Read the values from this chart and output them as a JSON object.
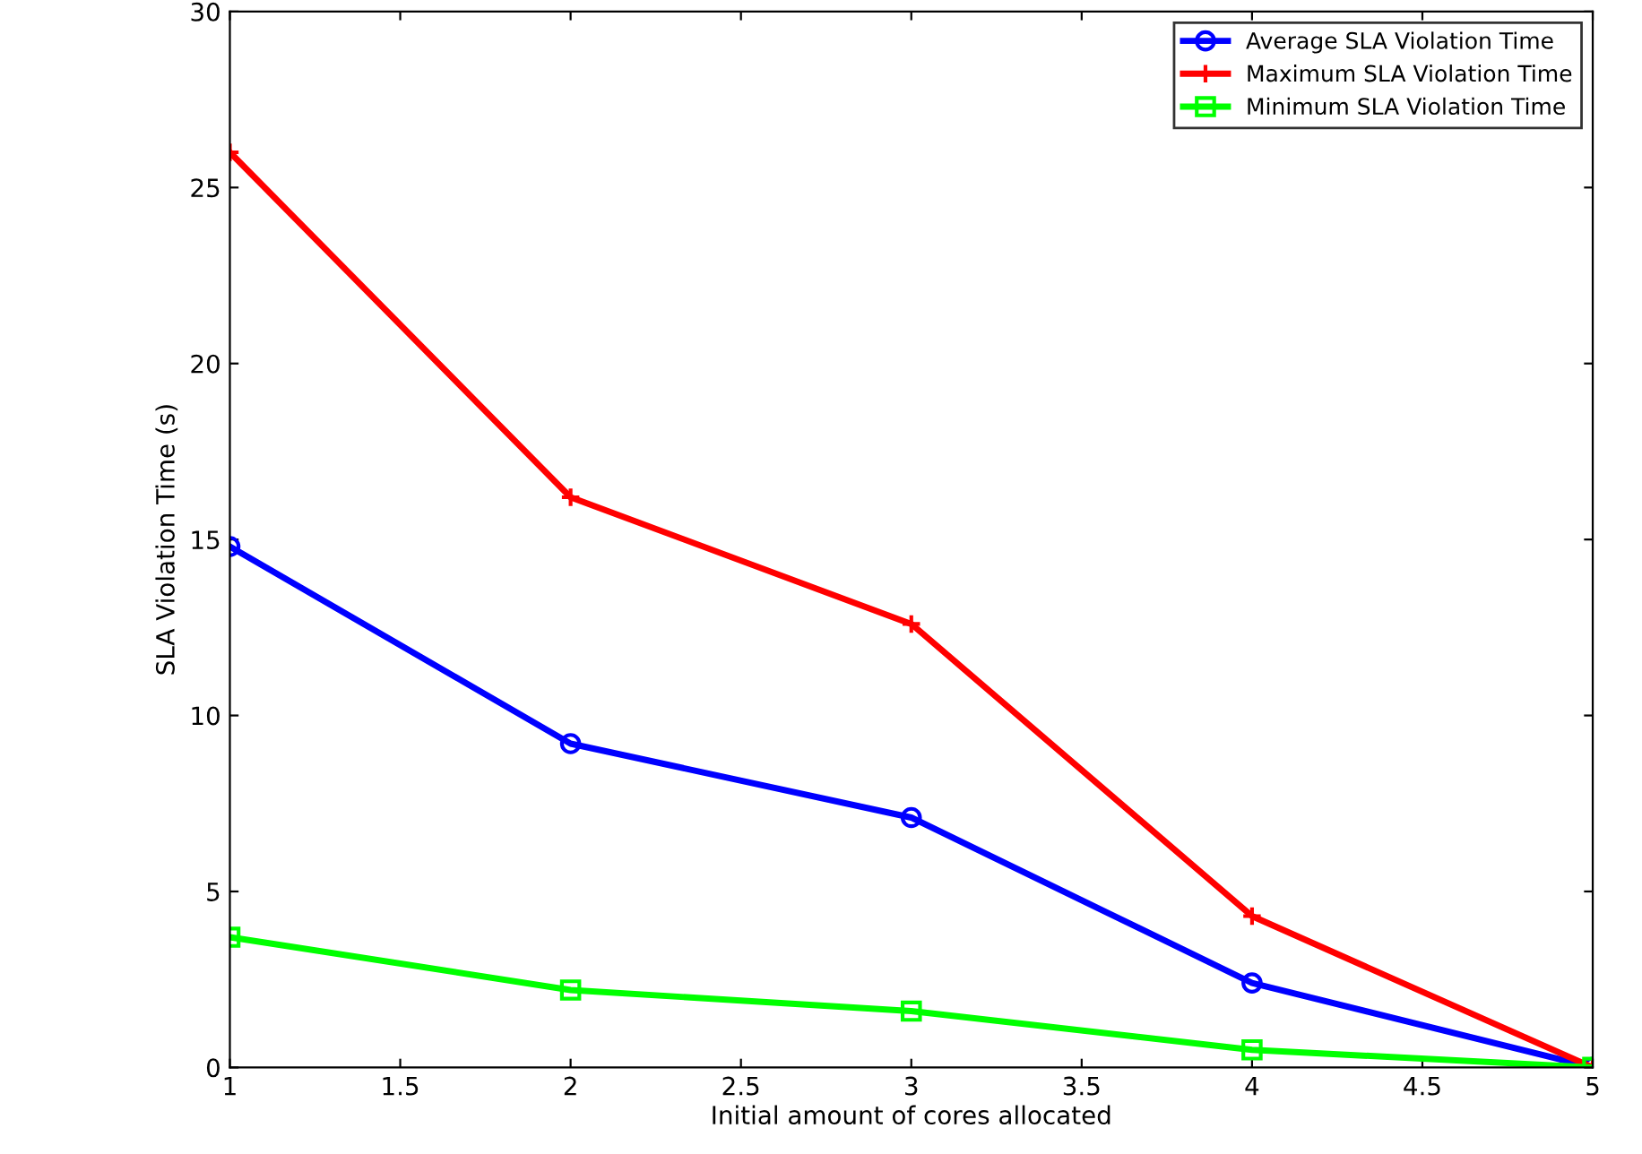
{
  "chart_data": {
    "type": "line",
    "xlabel": "Initial amount of cores allocated",
    "ylabel": "SLA Violation Time (s)",
    "x": [
      1,
      2,
      3,
      4,
      5
    ],
    "series": [
      {
        "name": "Average SLA Violation Time",
        "color": "#0000ff",
        "marker": "circle",
        "values": [
          14.8,
          9.2,
          7.1,
          2.4,
          0
        ]
      },
      {
        "name": "Maximum SLA Violation Time",
        "color": "#ff0000",
        "marker": "cross",
        "values": [
          26.0,
          16.2,
          12.6,
          4.3,
          0
        ]
      },
      {
        "name": "Minimum SLA Violation Time",
        "color": "#00ff00",
        "marker": "square",
        "values": [
          3.7,
          2.2,
          1.6,
          0.5,
          0
        ]
      }
    ],
    "xlim": [
      1,
      5
    ],
    "ylim": [
      0,
      30
    ],
    "xticks": [
      1,
      1.5,
      2,
      2.5,
      3,
      3.5,
      4,
      4.5,
      5
    ],
    "yticks": [
      0,
      5,
      10,
      15,
      20,
      25,
      30
    ],
    "grid": false,
    "legend": "top right",
    "line_style": "solid"
  }
}
